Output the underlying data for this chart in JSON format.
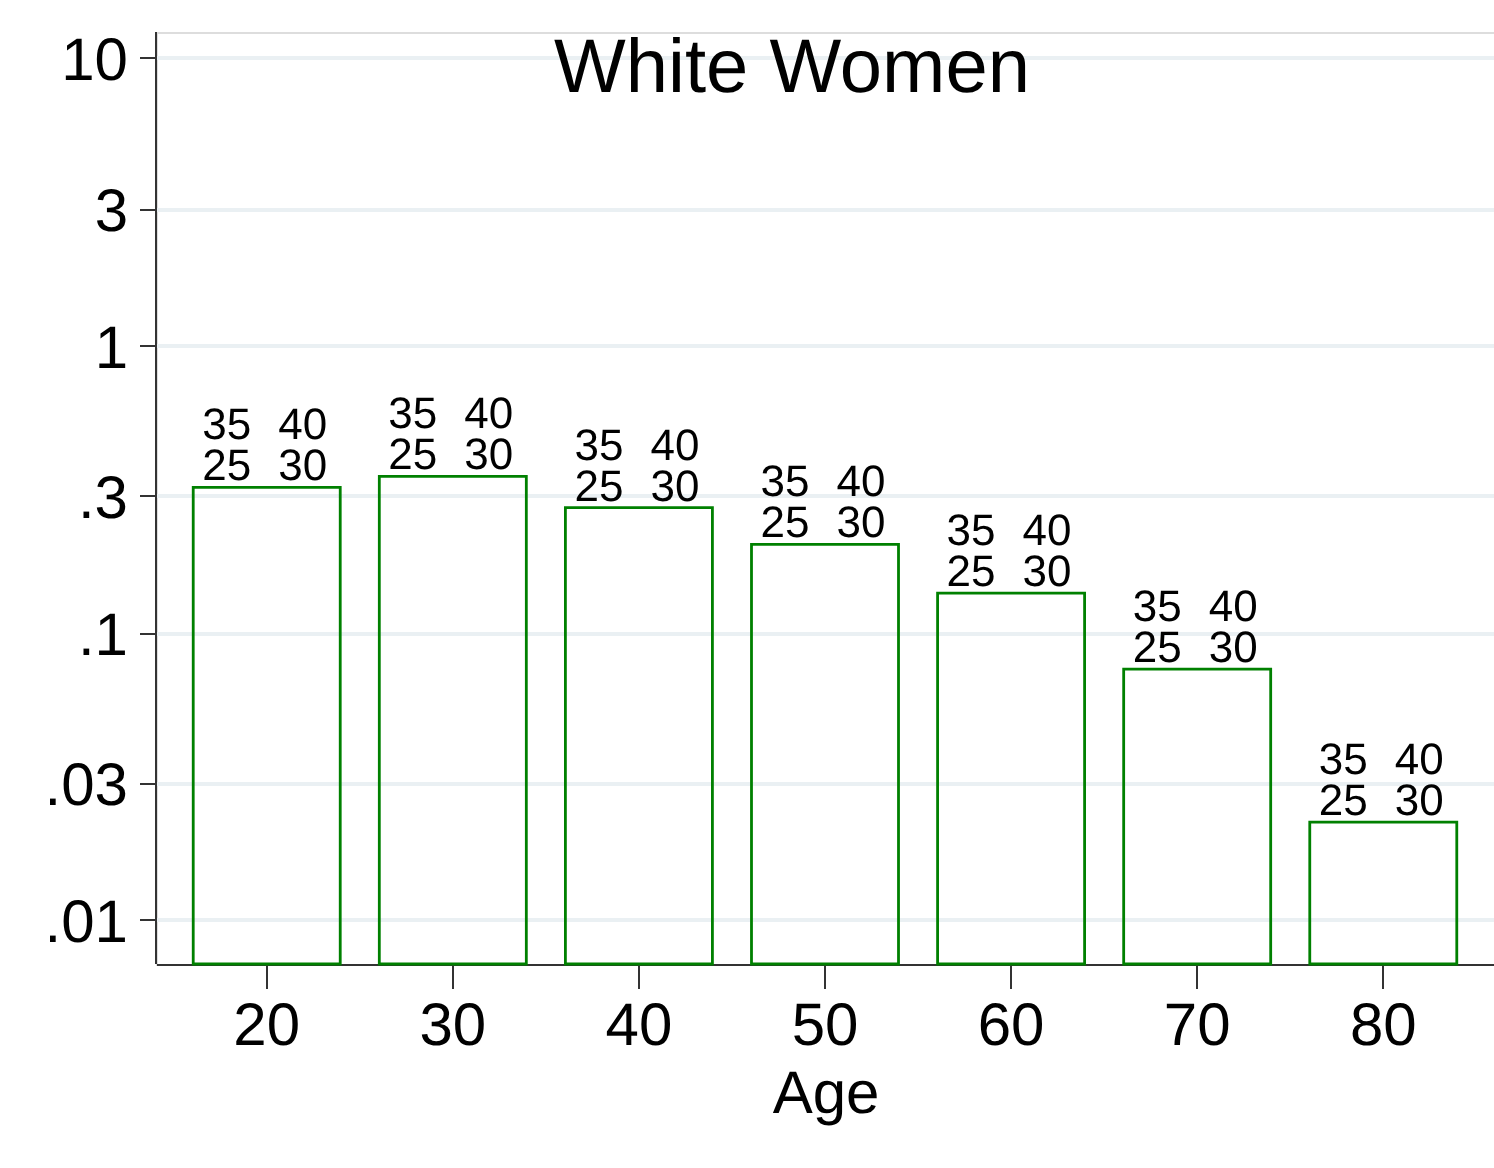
{
  "chart_data": {
    "type": "bar",
    "title": "White Women",
    "xlabel": "Age",
    "categories": [
      "20",
      "30",
      "40",
      "50",
      "60",
      "70",
      "80"
    ],
    "series": [
      {
        "color": "#008000",
        "values": [
          0.322,
          0.352,
          0.274,
          0.204,
          0.138,
          0.075,
          0.022
        ]
      }
    ],
    "log": "y",
    "ylim": [
      0.00706,
      12.4
    ],
    "yticks": [
      {
        "value": 0.01,
        "label": ".01"
      },
      {
        "value": 0.03,
        "label": ".03"
      },
      {
        "value": 0.1,
        "label": ".1"
      },
      {
        "value": 0.3,
        "label": ".3"
      },
      1,
      3,
      10
    ],
    "grid": "y",
    "annotations": [
      "25",
      "30",
      "35",
      "40",
      "25",
      "30",
      "35",
      "40",
      "25",
      "30",
      "35",
      "40",
      "25",
      "30",
      "35",
      "40",
      "25",
      "30",
      "35",
      "40",
      "25",
      "30",
      "35",
      "40",
      "25",
      "30",
      "35",
      "40"
    ]
  }
}
